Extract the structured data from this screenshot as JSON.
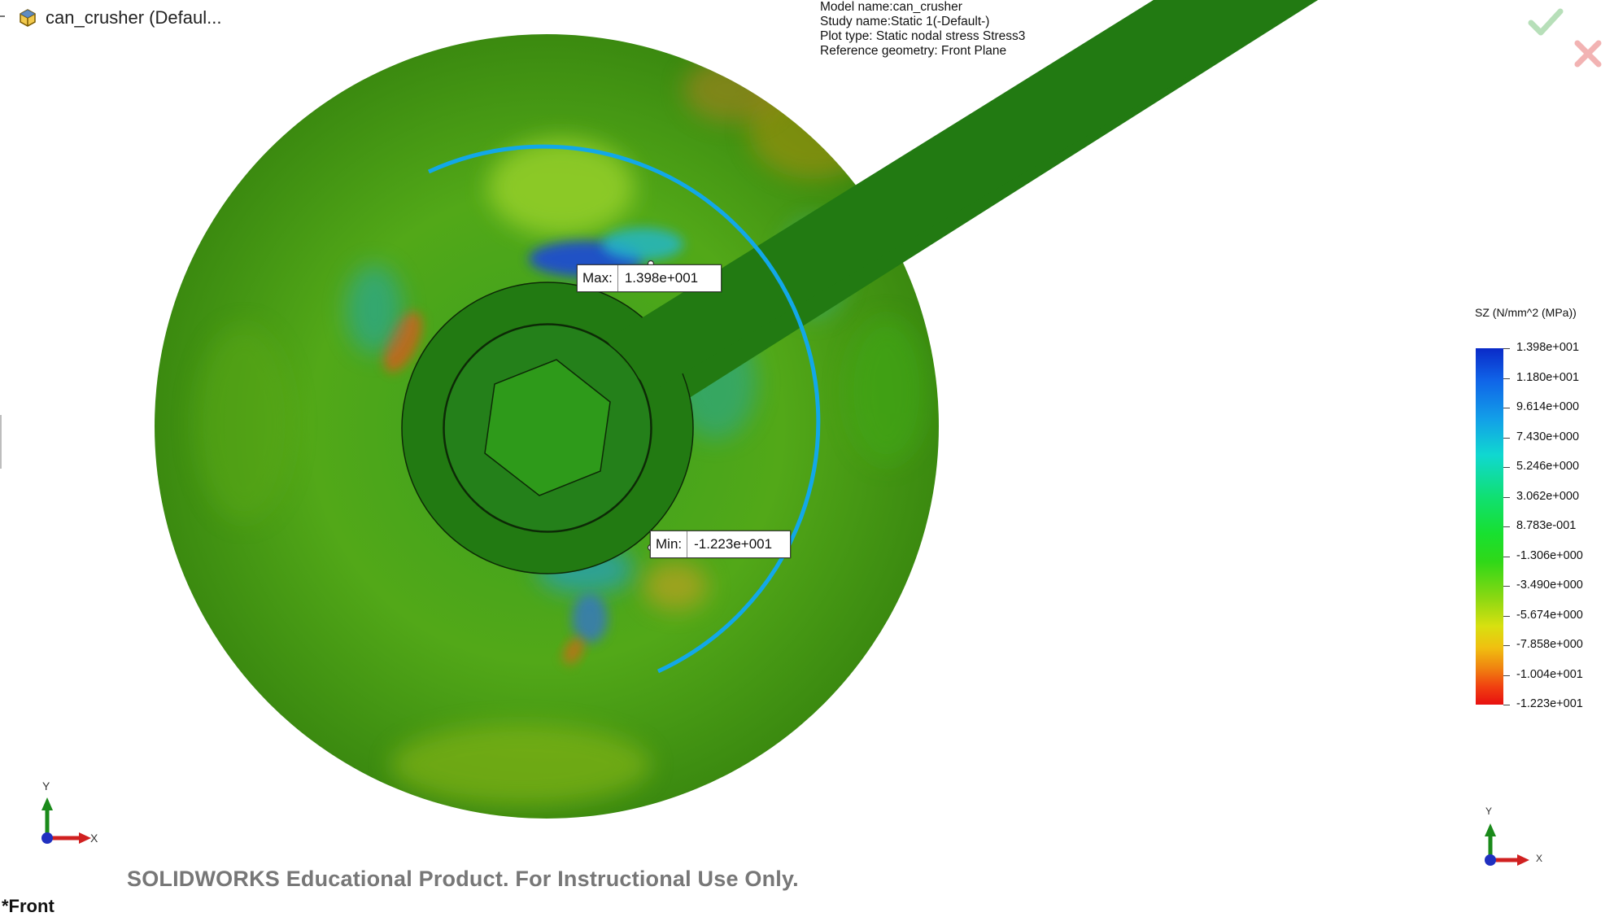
{
  "window": {
    "title": "can_crusher  (Defaul...",
    "icon": "part-icon"
  },
  "study_info": {
    "model_name": "Model name:can_crusher",
    "study_name": "Study name:Static 1(-Default-)",
    "plot_type": "Plot type: Static nodal stress Stress3",
    "reference_geometry": "Reference geometry: Front Plane"
  },
  "callouts": {
    "max_label": "Max:",
    "max_value": "1.398e+001",
    "min_label": "Min:",
    "min_value": "-1.223e+001"
  },
  "legend": {
    "title": "SZ (N/mm^2 (MPa))",
    "values": [
      "1.398e+001",
      "1.180e+001",
      "9.614e+000",
      "7.430e+000",
      "5.246e+000",
      "3.062e+000",
      "8.783e-001",
      "-1.306e+000",
      "-3.490e+000",
      "-5.674e+000",
      "-7.858e+000",
      "-1.004e+001",
      "-1.223e+001"
    ],
    "colors": {
      "max": "#0a2ac8",
      "min": "#e81010"
    }
  },
  "triad_main": {
    "x_label": "X",
    "y_label": "Y"
  },
  "triad_small": {
    "x_label": "X",
    "y_label": "Y"
  },
  "watermark": "SOLIDWORKS Educational Product. For Instructional Use Only.",
  "view_name": "*Front",
  "colors": {
    "part_green": "#207a10",
    "arc_blue": "#12a8e8"
  }
}
